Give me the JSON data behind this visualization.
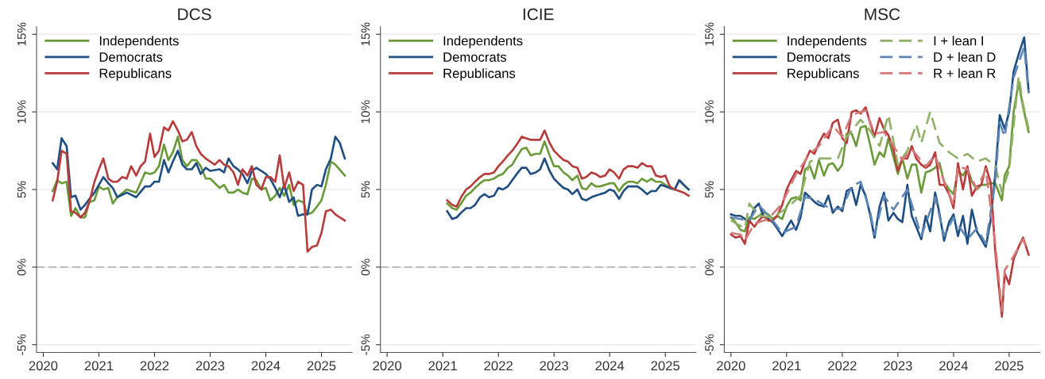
{
  "chart_data": [
    {
      "type": "line",
      "title": "DCS",
      "xlim": [
        2019.88,
        2025.55
      ],
      "xticks": [
        2020,
        2021,
        2022,
        2023,
        2024,
        2025
      ],
      "ylim": [
        -5.5,
        15.5
      ],
      "yticks": [
        {
          "value": -5,
          "label": "-5%"
        },
        {
          "value": 0,
          "label": "0%"
        },
        {
          "value": 5,
          "label": "5%"
        },
        {
          "value": 10,
          "label": "10%"
        },
        {
          "value": 15,
          "label": "15%"
        }
      ],
      "grid": "y",
      "legend": "top left",
      "ref_lines": [
        {
          "axis": "y",
          "value": 0,
          "color": "#b4b4b4",
          "line_style": "dashed"
        }
      ],
      "series": [
        {
          "name": "Independents",
          "color": "#6a9a3a",
          "line_style": "solid",
          "x": [
            2020.17,
            2020.25,
            2020.33,
            2020.42,
            2020.5,
            2020.58,
            2020.67,
            2020.75,
            2020.83,
            2020.92,
            2021.0,
            2021.08,
            2021.17,
            2021.25,
            2021.33,
            2021.5,
            2021.67,
            2021.83,
            2021.92,
            2022.0,
            2022.08,
            2022.17,
            2022.25,
            2022.33,
            2022.42,
            2022.5,
            2022.58,
            2022.67,
            2022.75,
            2022.83,
            2022.92,
            2023.0,
            2023.17,
            2023.25,
            2023.33,
            2023.42,
            2023.5,
            2023.58,
            2023.67,
            2023.75,
            2023.83,
            2023.92,
            2024.0,
            2024.08,
            2024.17,
            2024.25,
            2024.33,
            2024.42,
            2024.5,
            2024.58,
            2024.67,
            2024.75,
            2024.83,
            2024.92,
            2025.0,
            2025.08,
            2025.17,
            2025.25,
            2025.42
          ],
          "values": [
            4.9,
            5.6,
            5.4,
            5.5,
            3.3,
            3.8,
            3.2,
            3.2,
            4.2,
            4.3,
            5.2,
            5.0,
            5.1,
            4.1,
            4.5,
            5.0,
            4.8,
            6.1,
            6.0,
            6.1,
            6.5,
            7.9,
            6.9,
            7.4,
            8.4,
            6.9,
            6.5,
            6.9,
            6.9,
            6.5,
            5.7,
            5.7,
            5.1,
            5.3,
            4.8,
            4.8,
            5.0,
            4.8,
            4.7,
            5.7,
            5.6,
            5.0,
            5.1,
            4.3,
            4.6,
            5.1,
            4.6,
            5.3,
            4.0,
            4.3,
            4.2,
            3.4,
            3.5,
            3.9,
            4.3,
            5.3,
            6.8,
            6.6,
            5.9
          ]
        },
        {
          "name": "Democrats",
          "color": "#1f4f82",
          "line_style": "solid",
          "x": [
            2020.17,
            2020.25,
            2020.33,
            2020.42,
            2020.5,
            2020.58,
            2020.67,
            2020.75,
            2020.83,
            2020.92,
            2021.0,
            2021.08,
            2021.17,
            2021.25,
            2021.33,
            2021.5,
            2021.67,
            2021.83,
            2021.92,
            2022.0,
            2022.08,
            2022.17,
            2022.25,
            2022.33,
            2022.42,
            2022.5,
            2022.58,
            2022.67,
            2022.75,
            2022.83,
            2022.92,
            2023.0,
            2023.17,
            2023.25,
            2023.33,
            2023.42,
            2023.5,
            2023.58,
            2023.67,
            2023.75,
            2023.83,
            2023.92,
            2024.0,
            2024.08,
            2024.17,
            2024.25,
            2024.33,
            2024.42,
            2024.5,
            2024.58,
            2024.67,
            2024.75,
            2024.83,
            2024.92,
            2025.0,
            2025.08,
            2025.17,
            2025.25,
            2025.33,
            2025.42
          ],
          "values": [
            6.7,
            6.3,
            8.3,
            7.8,
            4.5,
            4.6,
            3.7,
            4.0,
            4.4,
            4.8,
            5.3,
            5.8,
            5.4,
            5.1,
            4.5,
            4.8,
            4.5,
            5.2,
            5.2,
            5.5,
            5.5,
            6.9,
            6.1,
            6.8,
            7.5,
            6.6,
            6.3,
            6.3,
            6.7,
            6.0,
            6.4,
            6.2,
            6.3,
            6.1,
            7.0,
            6.5,
            6.3,
            6.0,
            5.4,
            6.2,
            6.4,
            6.2,
            6.0,
            5.7,
            5.1,
            4.5,
            5.3,
            4.2,
            4.5,
            3.3,
            3.4,
            3.4,
            5.0,
            5.3,
            5.2,
            6.3,
            7.0,
            8.4,
            8.0,
            7.0
          ]
        },
        {
          "name": "Republicans",
          "color": "#b83c3c",
          "line_style": "solid",
          "x": [
            2020.17,
            2020.25,
            2020.33,
            2020.42,
            2020.5,
            2020.58,
            2020.67,
            2020.75,
            2020.83,
            2020.92,
            2021.0,
            2021.08,
            2021.17,
            2021.25,
            2021.33,
            2021.42,
            2021.5,
            2021.58,
            2021.67,
            2021.75,
            2021.83,
            2021.92,
            2022.0,
            2022.08,
            2022.17,
            2022.25,
            2022.33,
            2022.42,
            2022.5,
            2022.58,
            2022.67,
            2022.75,
            2022.83,
            2022.92,
            2023.0,
            2023.08,
            2023.17,
            2023.25,
            2023.33,
            2023.42,
            2023.5,
            2023.58,
            2023.67,
            2023.75,
            2023.83,
            2023.92,
            2024.0,
            2024.08,
            2024.17,
            2024.25,
            2024.33,
            2024.42,
            2024.5,
            2024.58,
            2024.67,
            2024.75,
            2024.83,
            2024.92,
            2025.0,
            2025.08,
            2025.17,
            2025.25,
            2025.33,
            2025.42
          ],
          "values": [
            4.3,
            5.5,
            7.5,
            7.3,
            3.6,
            3.5,
            3.2,
            3.5,
            4.2,
            5.5,
            6.3,
            7.0,
            5.7,
            5.5,
            5.5,
            5.8,
            5.7,
            6.5,
            5.9,
            6.5,
            6.8,
            8.6,
            7.1,
            7.5,
            9.0,
            8.8,
            9.4,
            8.8,
            8.1,
            8.2,
            8.7,
            7.8,
            7.3,
            7.0,
            6.8,
            6.6,
            6.9,
            6.6,
            6.5,
            6.1,
            5.3,
            6.3,
            5.9,
            6.5,
            5.3,
            5.0,
            5.8,
            5.8,
            5.5,
            7.2,
            5.1,
            6.1,
            4.9,
            5.5,
            5.3,
            1.0,
            1.3,
            1.4,
            2.2,
            3.6,
            3.7,
            3.4,
            3.2,
            3.0
          ]
        }
      ]
    },
    {
      "type": "line",
      "title": "ICIE",
      "xlim": [
        2019.88,
        2025.55
      ],
      "xticks": [
        2020,
        2021,
        2022,
        2023,
        2024,
        2025
      ],
      "ylim": [
        -5.5,
        15.5
      ],
      "yticks": [
        {
          "value": -5,
          "label": "-5%"
        },
        {
          "value": 0,
          "label": "0%"
        },
        {
          "value": 5,
          "label": "5%"
        },
        {
          "value": 10,
          "label": "10%"
        },
        {
          "value": 15,
          "label": "15%"
        }
      ],
      "grid": "y",
      "legend": "top left",
      "ref_lines": [
        {
          "axis": "y",
          "value": 0,
          "color": "#b4b4b4",
          "line_style": "dashed"
        }
      ],
      "series": [
        {
          "name": "Independents",
          "color": "#6a9a3a",
          "line_style": "solid",
          "x": [
            2021.08,
            2021.17,
            2021.25,
            2021.33,
            2021.42,
            2021.5,
            2021.58,
            2021.67,
            2021.75,
            2021.83,
            2021.92,
            2022.0,
            2022.08,
            2022.17,
            2022.25,
            2022.33,
            2022.42,
            2022.5,
            2022.58,
            2022.67,
            2022.75,
            2022.83,
            2022.92,
            2023.0,
            2023.08,
            2023.17,
            2023.25,
            2023.33,
            2023.42,
            2023.5,
            2023.58,
            2023.67,
            2023.75,
            2023.83,
            2023.92,
            2024.0,
            2024.08,
            2024.17,
            2024.25,
            2024.33,
            2024.42,
            2024.5,
            2024.58,
            2024.67,
            2024.75,
            2024.83,
            2024.92,
            2025.0,
            2025.08,
            2025.17,
            2025.25,
            2025.33,
            2025.42
          ],
          "values": [
            4.1,
            3.8,
            3.7,
            4.1,
            4.6,
            4.8,
            5.1,
            5.4,
            5.6,
            5.6,
            5.7,
            5.9,
            6.0,
            6.4,
            6.6,
            7.1,
            7.6,
            7.7,
            7.2,
            7.3,
            7.3,
            8.1,
            7.2,
            6.5,
            6.5,
            6.1,
            5.9,
            5.6,
            5.9,
            5.1,
            5.0,
            5.4,
            5.2,
            5.2,
            5.3,
            5.4,
            5.4,
            4.9,
            5.3,
            5.5,
            5.5,
            5.4,
            5.7,
            5.5,
            5.7,
            5.5,
            5.5,
            5.3,
            5.1,
            5.0,
            5.6,
            5.3,
            5.0
          ]
        },
        {
          "name": "Democrats",
          "color": "#1f4f82",
          "line_style": "solid",
          "x": [
            2021.08,
            2021.17,
            2021.25,
            2021.33,
            2021.42,
            2021.5,
            2021.58,
            2021.67,
            2021.75,
            2021.83,
            2021.92,
            2022.0,
            2022.08,
            2022.17,
            2022.25,
            2022.33,
            2022.42,
            2022.5,
            2022.58,
            2022.67,
            2022.75,
            2022.83,
            2022.92,
            2023.0,
            2023.08,
            2023.17,
            2023.25,
            2023.33,
            2023.42,
            2023.5,
            2023.58,
            2023.67,
            2023.75,
            2023.83,
            2023.92,
            2024.0,
            2024.08,
            2024.17,
            2024.25,
            2024.33,
            2024.42,
            2024.5,
            2024.58,
            2024.67,
            2024.75,
            2024.83,
            2024.92,
            2025.0,
            2025.08,
            2025.17,
            2025.25,
            2025.33,
            2025.42
          ],
          "values": [
            3.6,
            3.1,
            3.2,
            3.5,
            3.8,
            3.8,
            4.0,
            4.5,
            4.7,
            4.5,
            4.6,
            5.1,
            5.0,
            5.2,
            5.6,
            6.0,
            6.4,
            6.4,
            6.0,
            6.1,
            6.3,
            7.0,
            6.2,
            5.7,
            5.4,
            5.1,
            5.0,
            4.7,
            5.0,
            4.4,
            4.3,
            4.5,
            4.6,
            4.7,
            4.8,
            5.0,
            4.9,
            4.4,
            4.9,
            5.2,
            5.2,
            5.2,
            5.0,
            4.7,
            4.9,
            4.9,
            5.3,
            5.2,
            5.1,
            5.0,
            5.6,
            5.3,
            5.0
          ]
        },
        {
          "name": "Republicans",
          "color": "#b83c3c",
          "line_style": "solid",
          "x": [
            2021.08,
            2021.17,
            2021.25,
            2021.33,
            2021.42,
            2021.5,
            2021.58,
            2021.67,
            2021.75,
            2021.83,
            2021.92,
            2022.0,
            2022.08,
            2022.17,
            2022.25,
            2022.33,
            2022.42,
            2022.5,
            2022.58,
            2022.67,
            2022.75,
            2022.83,
            2022.92,
            2023.0,
            2023.08,
            2023.17,
            2023.25,
            2023.33,
            2023.42,
            2023.5,
            2023.58,
            2023.67,
            2023.75,
            2023.83,
            2023.92,
            2024.0,
            2024.08,
            2024.17,
            2024.25,
            2024.33,
            2024.42,
            2024.5,
            2024.58,
            2024.67,
            2024.75,
            2024.83,
            2024.92,
            2025.0,
            2025.08,
            2025.17,
            2025.25,
            2025.33,
            2025.42
          ],
          "values": [
            4.3,
            4.0,
            3.9,
            4.5,
            5.0,
            5.2,
            5.5,
            5.8,
            6.0,
            6.0,
            6.1,
            6.5,
            6.8,
            7.2,
            7.5,
            7.9,
            8.4,
            8.3,
            8.2,
            8.2,
            8.2,
            8.8,
            8.0,
            7.5,
            7.2,
            6.9,
            6.8,
            6.5,
            6.4,
            5.7,
            5.8,
            6.1,
            6.0,
            5.8,
            5.9,
            6.3,
            6.1,
            5.7,
            6.3,
            6.5,
            6.5,
            6.4,
            6.7,
            6.5,
            6.5,
            5.9,
            5.8,
            5.9,
            5.2,
            5.0,
            4.9,
            4.8,
            4.6
          ]
        }
      ]
    },
    {
      "type": "line",
      "title": "MSC",
      "xlim": [
        2019.88,
        2025.55
      ],
      "xticks": [
        2020,
        2021,
        2022,
        2023,
        2024,
        2025
      ],
      "ylim": [
        -5.5,
        15.5
      ],
      "yticks": [
        {
          "value": -5,
          "label": "-5%"
        },
        {
          "value": 0,
          "label": "0%"
        },
        {
          "value": 5,
          "label": "5%"
        },
        {
          "value": 10,
          "label": "10%"
        },
        {
          "value": 15,
          "label": "15%"
        }
      ],
      "grid": "y",
      "legend": "top left",
      "series": [
        {
          "name": "Independents",
          "color": "#6a9a3a",
          "line_style": "solid",
          "x": [
            2020.0,
            2020.08,
            2020.17,
            2020.25,
            2020.33,
            2020.42,
            2020.5,
            2020.58,
            2020.67,
            2020.75,
            2020.83,
            2020.92,
            2021.0,
            2021.08,
            2021.17,
            2021.25,
            2021.33,
            2021.42,
            2021.5,
            2021.58,
            2021.67,
            2021.75,
            2021.83,
            2021.92,
            2022.0,
            2022.08,
            2022.17,
            2022.25,
            2022.33,
            2022.42,
            2022.5,
            2022.58,
            2022.67,
            2022.75,
            2022.83,
            2022.92,
            2023.0,
            2023.08,
            2023.17,
            2023.25,
            2023.33,
            2023.42,
            2023.5,
            2023.58,
            2023.67,
            2023.75,
            2023.83,
            2023.92,
            2024.0,
            2024.08,
            2024.17,
            2024.25,
            2024.33,
            2024.42,
            2024.5,
            2024.58,
            2024.67,
            2024.75,
            2024.87,
            2024.92,
            2025.0,
            2025.08,
            2025.17,
            2025.25,
            2025.35
          ],
          "values": [
            3.2,
            2.9,
            2.4,
            2.3,
            3.2,
            3.1,
            3.3,
            3.5,
            3.4,
            3.1,
            3.3,
            3.1,
            3.9,
            4.4,
            4.5,
            4.3,
            6.3,
            6.5,
            5.7,
            6.9,
            5.9,
            6.6,
            6.7,
            6.2,
            6.6,
            8.6,
            8.6,
            7.8,
            9.0,
            9.1,
            7.9,
            6.6,
            7.4,
            7.1,
            8.3,
            7.1,
            6.0,
            7.0,
            5.7,
            6.6,
            6.6,
            4.8,
            6.1,
            6.2,
            6.4,
            6.7,
            5.5,
            5.0,
            4.7,
            6.2,
            5.9,
            6.4,
            5.5,
            5.0,
            5.3,
            5.3,
            5.4,
            5.4,
            4.3,
            5.9,
            6.5,
            10.0,
            11.9,
            10.3,
            8.7
          ]
        },
        {
          "name": "Democrats",
          "color": "#1f4f82",
          "line_style": "solid",
          "x": [
            2020.0,
            2020.08,
            2020.17,
            2020.25,
            2020.33,
            2020.42,
            2020.5,
            2020.58,
            2020.67,
            2020.75,
            2020.83,
            2020.92,
            2021.0,
            2021.08,
            2021.17,
            2021.25,
            2021.33,
            2021.42,
            2021.5,
            2021.58,
            2021.67,
            2021.75,
            2021.83,
            2021.92,
            2022.0,
            2022.08,
            2022.17,
            2022.25,
            2022.33,
            2022.42,
            2022.5,
            2022.58,
            2022.67,
            2022.75,
            2022.83,
            2022.92,
            2023.0,
            2023.08,
            2023.17,
            2023.25,
            2023.33,
            2023.42,
            2023.5,
            2023.58,
            2023.67,
            2023.75,
            2023.83,
            2023.92,
            2024.0,
            2024.08,
            2024.17,
            2024.25,
            2024.33,
            2024.42,
            2024.58,
            2024.67,
            2024.75,
            2024.83,
            2024.92,
            2025.0,
            2025.08,
            2025.17,
            2025.27,
            2025.35
          ],
          "values": [
            3.4,
            3.3,
            3.3,
            3.1,
            2.9,
            3.8,
            4.1,
            3.3,
            3.1,
            2.9,
            2.5,
            2.0,
            2.5,
            3.0,
            2.4,
            3.2,
            4.8,
            4.5,
            4.2,
            4.0,
            3.9,
            4.6,
            3.5,
            3.9,
            3.6,
            4.9,
            5.1,
            4.0,
            5.3,
            4.6,
            3.4,
            1.9,
            3.9,
            4.8,
            3.0,
            3.5,
            3.1,
            2.9,
            5.3,
            3.3,
            2.6,
            1.8,
            3.3,
            2.3,
            4.8,
            3.4,
            1.7,
            2.9,
            3.4,
            2.0,
            3.3,
            1.5,
            3.7,
            2.3,
            1.3,
            3.1,
            6.0,
            9.8,
            8.9,
            10.0,
            12.6,
            13.7,
            14.8,
            11.3
          ]
        },
        {
          "name": "Republicans",
          "color": "#b83c3c",
          "line_style": "solid",
          "x": [
            2020.0,
            2020.08,
            2020.17,
            2020.25,
            2020.33,
            2020.42,
            2020.5,
            2020.58,
            2020.67,
            2020.75,
            2020.83,
            2020.92,
            2021.0,
            2021.08,
            2021.17,
            2021.25,
            2021.33,
            2021.42,
            2021.5,
            2021.58,
            2021.67,
            2021.75,
            2021.83,
            2021.92,
            2022.0,
            2022.08,
            2022.17,
            2022.25,
            2022.33,
            2022.42,
            2022.5,
            2022.58,
            2022.67,
            2022.75,
            2022.83,
            2022.92,
            2023.0,
            2023.08,
            2023.17,
            2023.25,
            2023.33,
            2023.42,
            2023.5,
            2023.58,
            2023.67,
            2023.75,
            2023.83,
            2023.92,
            2024.0,
            2024.08,
            2024.17,
            2024.25,
            2024.33,
            2024.42,
            2024.5,
            2024.58,
            2024.67,
            2024.75,
            2024.87,
            2024.92,
            2025.0,
            2025.08,
            2025.17,
            2025.25,
            2025.35
          ],
          "values": [
            2.1,
            1.9,
            2.0,
            1.5,
            3.0,
            2.6,
            3.0,
            3.3,
            3.0,
            3.0,
            3.3,
            4.0,
            5.0,
            5.6,
            6.2,
            6.0,
            6.8,
            7.5,
            7.3,
            8.0,
            8.6,
            8.3,
            9.3,
            9.5,
            8.3,
            8.0,
            10.0,
            10.1,
            9.9,
            10.3,
            9.3,
            8.4,
            9.6,
            8.9,
            8.5,
            7.6,
            6.2,
            7.0,
            7.0,
            7.8,
            7.0,
            6.6,
            6.4,
            6.6,
            7.4,
            5.3,
            5.3,
            4.7,
            3.8,
            6.7,
            5.0,
            6.5,
            4.6,
            5.2,
            5.3,
            6.5,
            5.4,
            1.0,
            -3.2,
            -0.4,
            -1.1,
            0.5,
            1.3,
            1.9,
            0.8
          ]
        },
        {
          "name": "I + lean I",
          "color": "#8fb066",
          "line_style": "dashed",
          "x": [
            2020.0,
            2020.25,
            2020.33,
            2020.5,
            2020.75,
            2021.0,
            2021.25,
            2021.42,
            2021.58,
            2021.75,
            2021.92,
            2022.08,
            2022.33,
            2022.5,
            2022.67,
            2022.83,
            2023.0,
            2023.17,
            2023.33,
            2023.42,
            2023.58,
            2023.75,
            2023.92,
            2024.08,
            2024.25,
            2024.42,
            2024.58,
            2024.75,
            2024.87,
            2025.0,
            2025.17,
            2025.25,
            2025.35
          ],
          "values": [
            3.0,
            2.5,
            4.1,
            3.3,
            3.2,
            3.8,
            4.6,
            6.8,
            7.0,
            7.0,
            7.0,
            8.4,
            9.5,
            8.8,
            7.8,
            9.8,
            6.6,
            7.5,
            9.2,
            8.0,
            10.0,
            8.0,
            7.4,
            7.0,
            7.3,
            6.8,
            7.0,
            6.5,
            4.8,
            6.3,
            12.3,
            10.5,
            8.9
          ]
        },
        {
          "name": "D + lean D",
          "color": "#5f86b4",
          "line_style": "dashed",
          "x": [
            2020.0,
            2020.17,
            2020.33,
            2020.5,
            2020.75,
            2020.92,
            2021.17,
            2021.33,
            2021.5,
            2021.67,
            2021.83,
            2022.0,
            2022.17,
            2022.33,
            2022.5,
            2022.58,
            2022.75,
            2022.92,
            2023.17,
            2023.42,
            2023.67,
            2023.83,
            2024.0,
            2024.25,
            2024.42,
            2024.58,
            2024.75,
            2024.83,
            2024.92,
            2025.08,
            2025.27,
            2025.35
          ],
          "values": [
            3.2,
            3.1,
            3.0,
            4.0,
            3.0,
            2.2,
            2.6,
            4.5,
            4.4,
            4.0,
            3.7,
            3.8,
            5.2,
            5.5,
            3.6,
            2.1,
            4.6,
            3.7,
            5.0,
            2.0,
            4.5,
            2.0,
            3.2,
            1.8,
            2.5,
            1.5,
            5.5,
            9.3,
            8.4,
            12.2,
            14.2,
            11.2
          ]
        },
        {
          "name": "R + lean R",
          "color": "#d47a7a",
          "line_style": "dashed",
          "x": [
            2020.0,
            2020.17,
            2020.25,
            2020.42,
            2020.67,
            2020.92,
            2021.17,
            2021.42,
            2021.58,
            2021.83,
            2022.0,
            2022.17,
            2022.42,
            2022.58,
            2022.75,
            2022.92,
            2023.08,
            2023.25,
            2023.5,
            2023.67,
            2023.83,
            2024.0,
            2024.08,
            2024.25,
            2024.42,
            2024.58,
            2024.75,
            2024.87,
            2024.92,
            2025.08,
            2025.25,
            2025.35
          ],
          "values": [
            2.2,
            2.1,
            1.7,
            2.8,
            3.1,
            4.1,
            6.0,
            7.3,
            7.8,
            9.1,
            8.4,
            9.8,
            10.1,
            8.6,
            8.7,
            7.8,
            6.9,
            7.6,
            6.5,
            7.2,
            5.5,
            4.0,
            6.5,
            6.3,
            5.0,
            6.3,
            1.5,
            -2.8,
            -0.2,
            0.7,
            1.8,
            1.0
          ]
        }
      ]
    }
  ]
}
